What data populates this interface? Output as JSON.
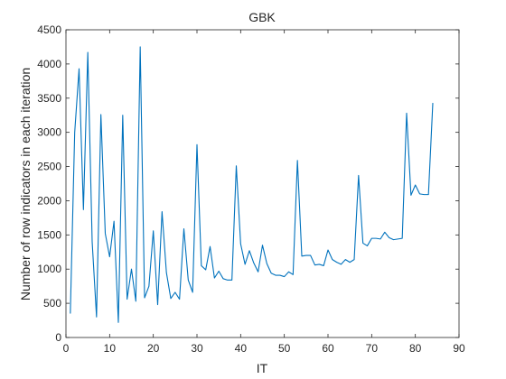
{
  "chart_data": {
    "type": "line",
    "title": "GBK",
    "xlabel": "IT",
    "ylabel": "Number of row indicators in each iteration",
    "xlim": [
      0,
      90
    ],
    "ylim": [
      0,
      4500
    ],
    "xticks": [
      0,
      10,
      20,
      30,
      40,
      50,
      60,
      70,
      80,
      90
    ],
    "yticks": [
      0,
      500,
      1000,
      1500,
      2000,
      2500,
      3000,
      3500,
      4000,
      4500
    ],
    "grid": false,
    "colors": {
      "line": "#0072bd",
      "axis": "#262626"
    },
    "series": [
      {
        "x": [
          1,
          2,
          3,
          4,
          5,
          6,
          7,
          8,
          9,
          10,
          11,
          12,
          13,
          14,
          15,
          16,
          17,
          18,
          19,
          20,
          21,
          22,
          23,
          24,
          25,
          26,
          27,
          28,
          29,
          30,
          31,
          32,
          33,
          34,
          35,
          36,
          37,
          38,
          39,
          40,
          41,
          42,
          43,
          44,
          45,
          46,
          47,
          48,
          49,
          50,
          51,
          52,
          53,
          54,
          55,
          56,
          57,
          58,
          59,
          60,
          61,
          62,
          63,
          64,
          65,
          66,
          67,
          68,
          69,
          70,
          71,
          72,
          73,
          74,
          75,
          76,
          77,
          78,
          79,
          80,
          81,
          82,
          83,
          84
        ],
        "y": [
          350,
          3000,
          3930,
          1870,
          4170,
          1400,
          300,
          3260,
          1520,
          1180,
          1700,
          220,
          3250,
          560,
          1000,
          530,
          4250,
          580,
          750,
          1560,
          480,
          1840,
          950,
          570,
          660,
          560,
          1590,
          840,
          660,
          2820,
          1050,
          990,
          1330,
          870,
          970,
          860,
          840,
          840,
          2510,
          1370,
          1070,
          1270,
          1090,
          960,
          1350,
          1080,
          940,
          910,
          910,
          890,
          960,
          920,
          2590,
          1190,
          1200,
          1200,
          1060,
          1070,
          1050,
          1280,
          1140,
          1100,
          1070,
          1140,
          1100,
          1140,
          2370,
          1380,
          1340,
          1450,
          1450,
          1440,
          1540,
          1460,
          1430,
          1440,
          1450,
          3280,
          2080,
          2230,
          2100,
          2090,
          2090,
          3430
        ]
      }
    ]
  }
}
